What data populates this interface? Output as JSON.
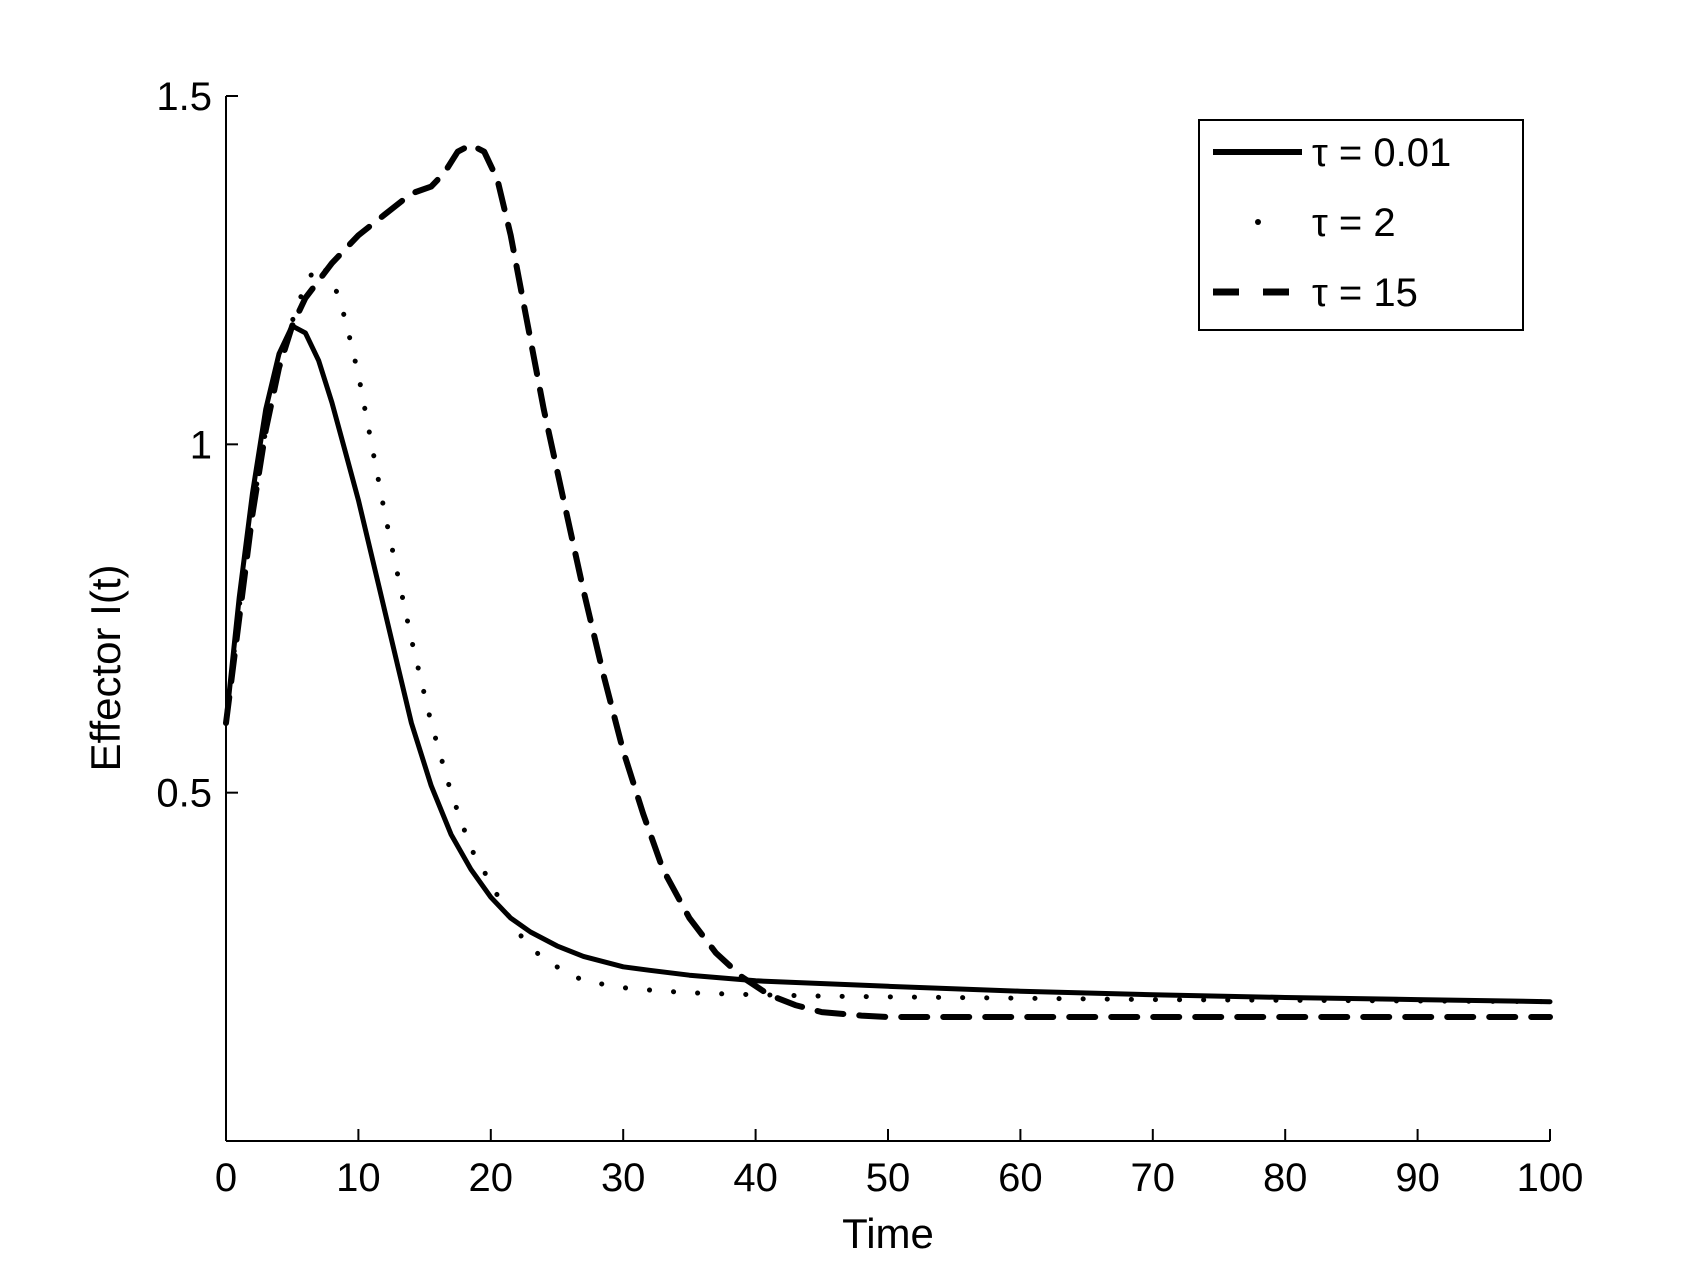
{
  "chart_data": {
    "type": "line",
    "title": "",
    "xlabel": "Time",
    "ylabel": "Effector I(t)",
    "xlim": [
      0,
      100
    ],
    "ylim": [
      0,
      1.5
    ],
    "xticks": [
      0,
      10,
      20,
      30,
      40,
      50,
      60,
      70,
      80,
      90,
      100
    ],
    "yticks": [
      0.5,
      1,
      1.5
    ],
    "xtick_labels": [
      "0",
      "10",
      "20",
      "30",
      "40",
      "50",
      "60",
      "70",
      "80",
      "90",
      "100"
    ],
    "ytick_labels": [
      "0.5",
      "1",
      "1.5"
    ],
    "grid": false,
    "legend_position": "top-right",
    "series": [
      {
        "name": "τ = 0.01",
        "style": "solid",
        "color": "#000000",
        "x": [
          0,
          1,
          2,
          3,
          4,
          5,
          6,
          7,
          8,
          9,
          10,
          11.5,
          13,
          14,
          15.5,
          17,
          18.5,
          20,
          21.5,
          23,
          25,
          27,
          30,
          32,
          35,
          40,
          50,
          60,
          70,
          80,
          90,
          100
        ],
        "y": [
          0.6,
          0.78,
          0.93,
          1.05,
          1.13,
          1.17,
          1.16,
          1.12,
          1.06,
          0.99,
          0.92,
          0.8,
          0.68,
          0.6,
          0.51,
          0.44,
          0.39,
          0.35,
          0.32,
          0.3,
          0.28,
          0.265,
          0.25,
          0.245,
          0.238,
          0.23,
          0.222,
          0.215,
          0.21,
          0.206,
          0.203,
          0.2
        ]
      },
      {
        "name": "τ = 2",
        "style": "dotted",
        "color": "#000000",
        "x": [
          0,
          1.5,
          3,
          4.5,
          6,
          7,
          8,
          9,
          10,
          11,
          12,
          13,
          14,
          15.5,
          17,
          18.5,
          20,
          22,
          24,
          27,
          30,
          33,
          36,
          40,
          45,
          50,
          60,
          70,
          80,
          90,
          100
        ],
        "y": [
          0.6,
          0.85,
          1.02,
          1.15,
          1.23,
          1.26,
          1.24,
          1.18,
          1.1,
          1.0,
          0.9,
          0.81,
          0.72,
          0.6,
          0.5,
          0.42,
          0.37,
          0.3,
          0.26,
          0.23,
          0.22,
          0.215,
          0.212,
          0.21,
          0.208,
          0.207,
          0.205,
          0.203,
          0.202,
          0.201,
          0.2
        ]
      },
      {
        "name": "τ = 15",
        "style": "dashed",
        "color": "#000000",
        "x": [
          0,
          1,
          2,
          3,
          4,
          5,
          6,
          8,
          10,
          12,
          14,
          15.5,
          16.5,
          17.5,
          18.5,
          19.5,
          20.5,
          21.5,
          22.5,
          24,
          25.5,
          27,
          28.5,
          30,
          31.5,
          33,
          35,
          37,
          39,
          41,
          43,
          45,
          48,
          50,
          60,
          70,
          80,
          90,
          100
        ],
        "y": [
          0.6,
          0.75,
          0.9,
          1.02,
          1.11,
          1.17,
          1.21,
          1.26,
          1.3,
          1.33,
          1.36,
          1.37,
          1.39,
          1.42,
          1.43,
          1.42,
          1.38,
          1.3,
          1.2,
          1.05,
          0.92,
          0.79,
          0.67,
          0.56,
          0.47,
          0.39,
          0.32,
          0.27,
          0.235,
          0.21,
          0.195,
          0.185,
          0.18,
          0.178,
          0.178,
          0.178,
          0.178,
          0.178,
          0.178
        ]
      }
    ]
  }
}
